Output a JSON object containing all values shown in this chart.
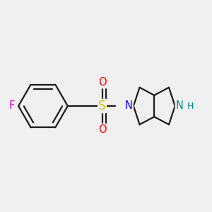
{
  "background_color": "#f0f0f0",
  "bond_color": "#1a1a1a",
  "bond_width": 1.6,
  "atom_colors": {
    "F": "#ee00ee",
    "S": "#cccc00",
    "O": "#ff0000",
    "N_sulfonyl": "#0000ff",
    "N_nh": "#008888",
    "H": "#008888"
  },
  "font_size_atoms": 10.5,
  "font_size_h": 9.0,
  "figsize": [
    3.0,
    3.0
  ],
  "dpi": 100
}
